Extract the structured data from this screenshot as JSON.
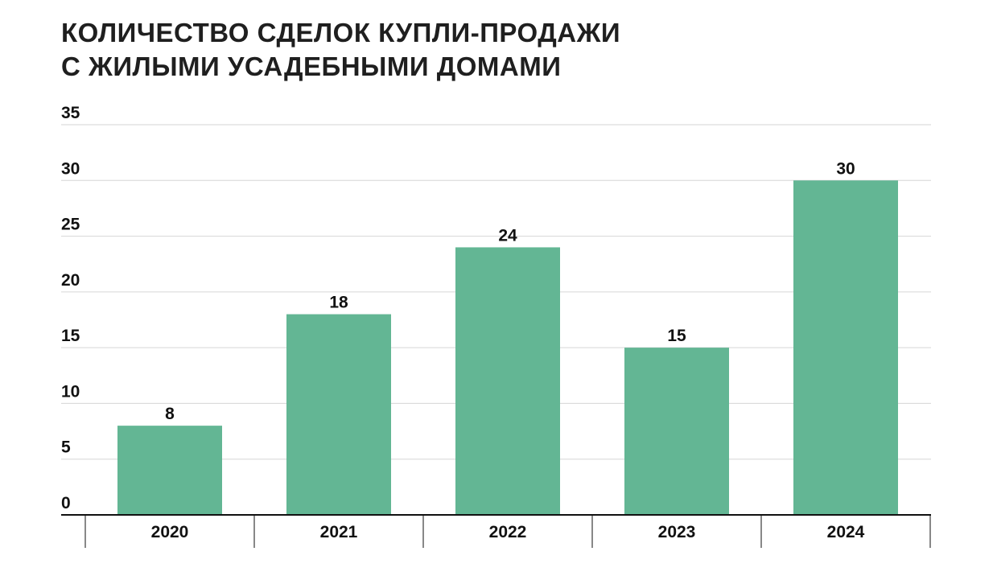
{
  "title_lines": [
    "КОЛИЧЕСТВО СДЕЛОК КУПЛИ-ПРОДАЖИ",
    "С ЖИЛЫМИ УСАДЕБНЫМИ ДОМАМИ"
  ],
  "colors": {
    "bar": "#63b694",
    "grid": "#d6d6d6",
    "axis": "#111111",
    "text": "#111111"
  },
  "chart_data": {
    "type": "bar",
    "title": "КОЛИЧЕСТВО СДЕЛОК КУПЛИ-ПРОДАЖИ С ЖИЛЫМИ УСАДЕБНЫМИ ДОМАМИ",
    "categories": [
      "2020",
      "2021",
      "2022",
      "2023",
      "2024"
    ],
    "values": [
      8,
      18,
      24,
      15,
      30
    ],
    "data_labels": [
      "8",
      "18",
      "24",
      "15",
      "30"
    ],
    "yticks": [
      0,
      5,
      10,
      15,
      20,
      25,
      30,
      35
    ],
    "ylim": [
      0,
      35
    ],
    "grid": true,
    "xlabel": "",
    "ylabel": ""
  }
}
